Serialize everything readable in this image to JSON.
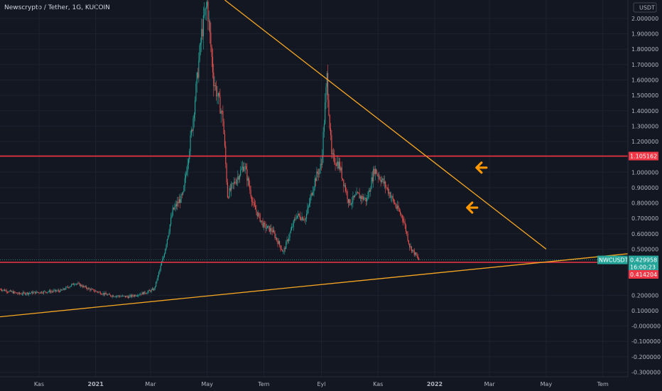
{
  "header": {
    "symbol_line": "Newscrypto / Tether, 1G, KUCOIN"
  },
  "colors": {
    "background": "#131722",
    "up": "#26a69a",
    "down": "#ef5350",
    "trendline": "#f5a623",
    "level": "#f23645",
    "arrow": "#ff9800"
  },
  "chart_data": {
    "type": "candlestick",
    "currency_label": "USDT",
    "ylim": [
      -0.33,
      2.12
    ],
    "y_ticks": [
      {
        "v": 2.0,
        "label": "2.000000"
      },
      {
        "v": 1.9,
        "label": "1.900000"
      },
      {
        "v": 1.8,
        "label": "1.800000"
      },
      {
        "v": 1.7,
        "label": "1.700000"
      },
      {
        "v": 1.6,
        "label": "1.600000"
      },
      {
        "v": 1.5,
        "label": "1.500000"
      },
      {
        "v": 1.4,
        "label": "1.400000"
      },
      {
        "v": 1.3,
        "label": "1.300000"
      },
      {
        "v": 1.2,
        "label": "1.200000"
      },
      {
        "v": 1.0,
        "label": "1.000000"
      },
      {
        "v": 0.9,
        "label": "0.900000"
      },
      {
        "v": 0.8,
        "label": "0.800000"
      },
      {
        "v": 0.7,
        "label": "0.700000"
      },
      {
        "v": 0.6,
        "label": "0.600000"
      },
      {
        "v": 0.5,
        "label": "0.500000"
      },
      {
        "v": 0.2,
        "label": "0.200000"
      },
      {
        "v": 0.1,
        "label": "0.100000"
      },
      {
        "v": 0.0,
        "label": "-0.000000"
      },
      {
        "v": -0.1,
        "label": "-0.100000"
      },
      {
        "v": -0.2,
        "label": "-0.200000"
      },
      {
        "v": -0.3,
        "label": "-0.300000"
      }
    ],
    "x_ticks": [
      {
        "date": "2020-11-01",
        "label": "Kas",
        "bold": false
      },
      {
        "date": "2021-01-01",
        "label": "2021",
        "bold": true
      },
      {
        "date": "2021-03-01",
        "label": "Mar",
        "bold": false
      },
      {
        "date": "2021-05-01",
        "label": "May",
        "bold": false
      },
      {
        "date": "2021-07-01",
        "label": "Tem",
        "bold": false
      },
      {
        "date": "2021-09-01",
        "label": "Eyl",
        "bold": false
      },
      {
        "date": "2021-11-01",
        "label": "Kas",
        "bold": false
      },
      {
        "date": "2022-01-01",
        "label": "2022",
        "bold": true
      },
      {
        "date": "2022-03-01",
        "label": "Mar",
        "bold": false
      },
      {
        "date": "2022-05-01",
        "label": "May",
        "bold": false
      },
      {
        "date": "2022-07-01",
        "label": "Tem",
        "bold": false
      }
    ],
    "xlim": [
      "2020-09-20",
      "2022-07-28"
    ],
    "price_path": [
      [
        "2020-09-20",
        0.24
      ],
      [
        "2020-10-10",
        0.21
      ],
      [
        "2020-11-01",
        0.22
      ],
      [
        "2020-11-25",
        0.23
      ],
      [
        "2020-12-10",
        0.28
      ],
      [
        "2020-12-25",
        0.24
      ],
      [
        "2021-01-15",
        0.2
      ],
      [
        "2021-02-05",
        0.19
      ],
      [
        "2021-02-25",
        0.22
      ],
      [
        "2021-03-05",
        0.24
      ],
      [
        "2021-03-15",
        0.45
      ],
      [
        "2021-03-25",
        0.75
      ],
      [
        "2021-04-05",
        0.85
      ],
      [
        "2021-04-15",
        1.3
      ],
      [
        "2021-04-25",
        1.9
      ],
      [
        "2021-05-01",
        2.1
      ],
      [
        "2021-05-08",
        1.6
      ],
      [
        "2021-05-18",
        1.35
      ],
      [
        "2021-05-23",
        0.85
      ],
      [
        "2021-06-01",
        0.95
      ],
      [
        "2021-06-10",
        1.05
      ],
      [
        "2021-06-20",
        0.78
      ],
      [
        "2021-07-01",
        0.65
      ],
      [
        "2021-07-10",
        0.62
      ],
      [
        "2021-07-22",
        0.48
      ],
      [
        "2021-08-05",
        0.72
      ],
      [
        "2021-08-15",
        0.7
      ],
      [
        "2021-08-25",
        0.95
      ],
      [
        "2021-09-01",
        1.05
      ],
      [
        "2021-09-07",
        1.62
      ],
      [
        "2021-09-12",
        1.1
      ],
      [
        "2021-09-20",
        1.05
      ],
      [
        "2021-10-01",
        0.8
      ],
      [
        "2021-10-10",
        0.85
      ],
      [
        "2021-10-20",
        0.82
      ],
      [
        "2021-10-28",
        1.02
      ],
      [
        "2021-11-05",
        0.95
      ],
      [
        "2021-11-12",
        0.88
      ],
      [
        "2021-11-20",
        0.78
      ],
      [
        "2021-11-28",
        0.7
      ],
      [
        "2021-12-05",
        0.52
      ],
      [
        "2021-12-15",
        0.43
      ]
    ],
    "annotations": {
      "resistance_level": {
        "value": 1.105162,
        "label": "1.105162"
      },
      "support_level": {
        "value": 0.414204,
        "label": "0.414204"
      },
      "current_price": {
        "value": 0.429958,
        "label": "0.429958",
        "countdown": "16:00:23",
        "symbol": "NWCUSDT"
      },
      "descending_trendline": {
        "from": [
          "2021-05-20",
          2.12
        ],
        "to": [
          "2022-05-01",
          0.5
        ]
      },
      "ascending_trendline": {
        "from": [
          "2020-09-20",
          0.06
        ],
        "to": [
          "2022-07-28",
          0.47
        ]
      },
      "arrows": [
        {
          "date": "2022-02-15",
          "value": 1.03,
          "direction": "left"
        },
        {
          "date": "2022-02-05",
          "value": 0.77,
          "direction": "left"
        }
      ]
    }
  }
}
